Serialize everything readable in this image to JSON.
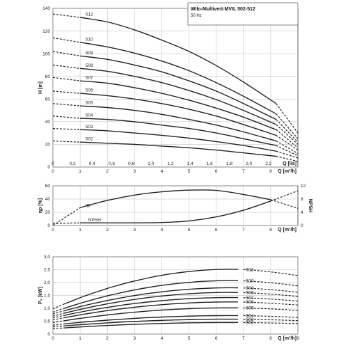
{
  "title": "Wilo-Multivert-MVIL 502-512",
  "subtitle": "50 Hz",
  "chart_data": [
    {
      "id": "head",
      "type": "line",
      "ylabel": "H [m]",
      "xlabel": "Q [m³/h]",
      "xlabel_ls": "Q [l/s]",
      "xlim": [
        0,
        9
      ],
      "ylim": [
        0,
        140
      ],
      "yticks": [
        0,
        20,
        40,
        60,
        80,
        100,
        120,
        140
      ],
      "xticks": [
        0,
        1,
        2,
        3,
        4,
        5,
        6,
        7,
        8
      ],
      "xticks_ls": [
        "0",
        "0,2",
        "0,4",
        "0,6",
        "0,8",
        "1,0",
        "1,2",
        "1,4",
        "1,6",
        "1,8",
        "2,0",
        "2,2"
      ],
      "grid": true,
      "series": [
        {
          "name": "502",
          "solid_x": [
            1,
            2,
            3,
            4,
            5,
            6,
            7,
            8.2
          ],
          "solid_y": [
            22,
            21,
            20,
            18.5,
            17,
            15,
            12.5,
            9.5
          ],
          "dashed_start": [
            0,
            23
          ],
          "dashed_end": [
            9,
            5
          ]
        },
        {
          "name": "503",
          "solid_x": [
            1,
            2,
            3,
            4,
            5,
            6,
            7,
            8.2
          ],
          "solid_y": [
            33,
            32,
            30,
            28,
            25.5,
            22.5,
            19,
            14
          ],
          "dashed_start": [
            0,
            34
          ],
          "dashed_end": [
            9,
            8
          ]
        },
        {
          "name": "504",
          "solid_x": [
            1,
            2,
            3,
            4,
            5,
            6,
            7,
            8.2
          ],
          "solid_y": [
            43,
            42,
            40,
            37,
            34,
            30,
            25,
            19
          ],
          "dashed_start": [
            0,
            45
          ],
          "dashed_end": [
            9,
            10
          ]
        },
        {
          "name": "505",
          "solid_x": [
            1,
            2,
            3,
            4,
            5,
            6,
            7,
            8.2
          ],
          "solid_y": [
            54,
            52.5,
            50,
            46.5,
            42,
            37,
            31,
            23
          ],
          "dashed_start": [
            0,
            56
          ],
          "dashed_end": [
            9,
            12
          ]
        },
        {
          "name": "506",
          "solid_x": [
            1,
            2,
            3,
            4,
            5,
            6,
            7,
            8.2
          ],
          "solid_y": [
            65,
            63,
            60,
            56,
            51,
            45,
            37.5,
            28
          ],
          "dashed_start": [
            0,
            67
          ],
          "dashed_end": [
            9,
            15
          ]
        },
        {
          "name": "507",
          "solid_x": [
            1,
            2,
            3,
            4,
            5,
            6,
            7,
            8.2
          ],
          "solid_y": [
            76,
            74,
            70,
            65,
            59,
            52,
            44,
            33
          ],
          "dashed_start": [
            0,
            79
          ],
          "dashed_end": [
            9,
            17
          ]
        },
        {
          "name": "508",
          "solid_x": [
            1,
            2,
            3,
            4,
            5,
            6,
            7,
            8.2
          ],
          "solid_y": [
            87,
            84.5,
            80,
            74.5,
            67.5,
            59.5,
            50,
            37.5
          ],
          "dashed_start": [
            0,
            90
          ],
          "dashed_end": [
            9,
            20
          ]
        },
        {
          "name": "509",
          "solid_x": [
            1,
            2,
            3,
            4,
            5,
            6,
            7,
            8.2
          ],
          "solid_y": [
            98,
            95,
            90,
            84,
            76,
            67,
            56,
            42
          ],
          "dashed_start": [
            0,
            102
          ],
          "dashed_end": [
            9,
            22
          ]
        },
        {
          "name": "510",
          "solid_x": [
            1,
            2,
            3,
            4,
            5,
            6,
            7,
            8.2
          ],
          "solid_y": [
            110,
            106,
            100.5,
            93.5,
            85,
            74.5,
            62.5,
            47
          ],
          "dashed_start": [
            0,
            114
          ],
          "dashed_end": [
            9,
            25
          ]
        },
        {
          "name": "512",
          "solid_x": [
            1,
            2,
            3,
            4,
            5,
            6,
            7,
            8.2
          ],
          "solid_y": [
            132,
            128,
            121,
            112,
            102,
            89.5,
            75,
            56
          ],
          "dashed_start": [
            0,
            135
          ],
          "dashed_end": [
            9,
            30
          ]
        }
      ]
    },
    {
      "id": "efficiency",
      "type": "line",
      "ylabel": "ηp [%]",
      "ylabel_right": "NPSH",
      "xlabel": "Q [m³/h]",
      "xlim": [
        0,
        9
      ],
      "ylim": [
        0,
        60
      ],
      "ylim_right": [
        0,
        12
      ],
      "yticks": [
        0,
        20,
        40,
        60
      ],
      "yticks_right": [
        0,
        4,
        8,
        12
      ],
      "xticks": [
        0,
        1,
        2,
        3,
        4,
        5,
        6,
        7,
        8
      ],
      "grid": true,
      "series": [
        {
          "name": "ηp",
          "x": [
            0,
            1,
            2,
            3,
            4,
            5,
            6,
            7,
            8,
            9
          ],
          "y": [
            0,
            27,
            38,
            46,
            51,
            53.5,
            53,
            47,
            39,
            26
          ]
        },
        {
          "name": "NPSH",
          "x": [
            0,
            1,
            2,
            3,
            4,
            5,
            6,
            7,
            8,
            9
          ],
          "y": [
            0.6,
            0.8,
            0.8,
            0.8,
            0.9,
            1.4,
            2.6,
            4.6,
            7.4,
            10.5
          ]
        }
      ]
    },
    {
      "id": "power",
      "type": "line",
      "ylabel": "P₂ [kW]",
      "xlabel": "Q [m³/h]",
      "xlim": [
        0,
        9
      ],
      "ylim": [
        0,
        3.0
      ],
      "yticks": [
        "0",
        "0,5",
        "1,0",
        "1,5",
        "2,0",
        "2,5",
        "3,0"
      ],
      "xticks": [
        0,
        1,
        2,
        3,
        4,
        5,
        6,
        7,
        8,
        9
      ],
      "grid": true,
      "series": [
        {
          "name": "502",
          "p0": 0.21,
          "pmax": 0.45
        },
        {
          "name": "503",
          "p0": 0.28,
          "pmax": 0.58
        },
        {
          "name": "504",
          "p0": 0.35,
          "pmax": 0.72
        },
        {
          "name": "505",
          "p0": 0.45,
          "pmax": 1.02
        },
        {
          "name": "506",
          "p0": 0.55,
          "pmax": 1.25
        },
        {
          "name": "507",
          "p0": 0.63,
          "pmax": 1.42
        },
        {
          "name": "508",
          "p0": 0.7,
          "pmax": 1.62
        },
        {
          "name": "509",
          "p0": 0.78,
          "pmax": 1.8
        },
        {
          "name": "510",
          "p0": 0.85,
          "pmax": 2.08
        },
        {
          "name": "512",
          "p0": 0.98,
          "pmax": 2.52
        }
      ]
    }
  ]
}
